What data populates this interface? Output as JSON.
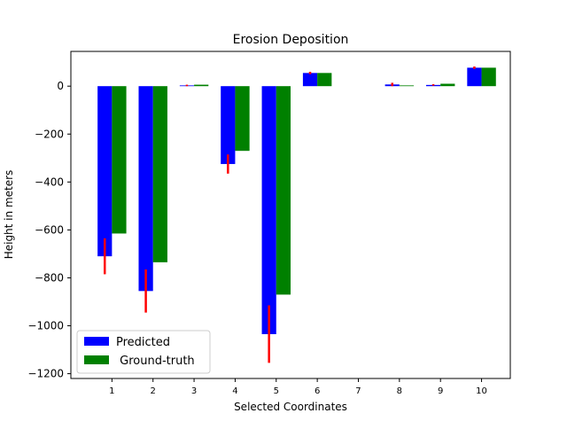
{
  "chart_data": {
    "type": "bar",
    "title": "Erosion Deposition",
    "xlabel": "Selected Coordinates",
    "ylabel": "Height in meters",
    "categories": [
      "1",
      "2",
      "3",
      "4",
      "5",
      "6",
      "7",
      "8",
      "9",
      "10"
    ],
    "ylim": [
      -1220,
      145
    ],
    "xlim": [
      0.0,
      10.7
    ],
    "yticks": [
      0,
      -200,
      -400,
      -600,
      -800,
      -1000,
      -1200
    ],
    "ytick_labels": [
      "0",
      "−200",
      "−400",
      "−600",
      "−800",
      "−1000",
      "−1200"
    ],
    "grid": false,
    "legend_position": "lower-left",
    "series": [
      {
        "name": "Predicted",
        "color": "#0000ff",
        "values": [
          -710,
          -855,
          3,
          -325,
          -1035,
          55,
          0,
          7,
          5,
          77
        ],
        "error": [
          75,
          90,
          3,
          40,
          120,
          5,
          0,
          7,
          3,
          5
        ],
        "error_color": "#ff0000"
      },
      {
        "name": " Ground-truth",
        "color": "#008000",
        "values": [
          -615,
          -735,
          6,
          -270,
          -870,
          55,
          0,
          3,
          10,
          77
        ]
      }
    ]
  }
}
